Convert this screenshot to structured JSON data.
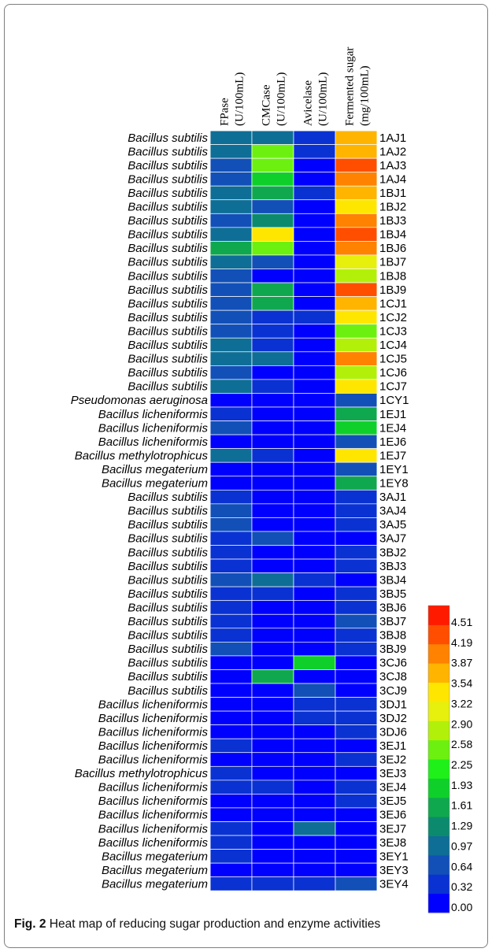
{
  "figure": {
    "label": "Fig. 2",
    "caption": "Heat map of reducing sugar production and enzyme activities"
  },
  "chart_data": {
    "type": "heatmap",
    "columns": [
      [
        "FPase",
        "(U/100mL)"
      ],
      [
        "CMCase",
        "(U/100mL)"
      ],
      [
        "Avicelase",
        "(U/100mL)"
      ],
      [
        "Fermented sugar",
        "(mg/100mL)"
      ]
    ],
    "rows": [
      {
        "species": "Bacillus subtilis",
        "code": "1AJ1",
        "values": [
          1.1,
          1.05,
          0.4,
          3.85
        ]
      },
      {
        "species": "Bacillus subtilis",
        "code": "1AJ2",
        "values": [
          1.1,
          2.55,
          0.35,
          3.9
        ]
      },
      {
        "species": "Bacillus subtilis",
        "code": "1AJ3",
        "values": [
          0.8,
          2.45,
          0.1,
          4.45
        ]
      },
      {
        "species": "Bacillus subtilis",
        "code": "1AJ4",
        "values": [
          0.7,
          2.0,
          0.1,
          4.2
        ]
      },
      {
        "species": "Bacillus subtilis",
        "code": "1BJ1",
        "values": [
          1.05,
          1.6,
          0.35,
          3.85
        ]
      },
      {
        "species": "Bacillus subtilis",
        "code": "1BJ2",
        "values": [
          1.0,
          0.7,
          0.1,
          3.6
        ]
      },
      {
        "species": "Bacillus subtilis",
        "code": "1BJ3",
        "values": [
          0.9,
          1.35,
          0.1,
          3.95
        ]
      },
      {
        "species": "Bacillus subtilis",
        "code": "1BJ4",
        "values": [
          1.05,
          3.55,
          0.05,
          4.5
        ]
      },
      {
        "species": "Bacillus subtilis",
        "code": "1BJ6",
        "values": [
          1.7,
          2.55,
          0.1,
          4.2
        ]
      },
      {
        "species": "Bacillus subtilis",
        "code": "1BJ7",
        "values": [
          0.95,
          0.75,
          0.1,
          3.1
        ]
      },
      {
        "species": "Bacillus subtilis",
        "code": "1BJ8",
        "values": [
          0.7,
          0.15,
          0.1,
          2.8
        ]
      },
      {
        "species": "Bacillus subtilis",
        "code": "1BJ9",
        "values": [
          0.7,
          1.7,
          0.1,
          4.25
        ]
      },
      {
        "species": "Bacillus subtilis",
        "code": "1CJ1",
        "values": [
          0.7,
          1.75,
          0.1,
          3.85
        ]
      },
      {
        "species": "Bacillus subtilis",
        "code": "1CJ2",
        "values": [
          0.7,
          0.6,
          0.4,
          3.6
        ]
      },
      {
        "species": "Bacillus subtilis",
        "code": "1CJ3",
        "values": [
          0.7,
          0.35,
          0.1,
          2.55
        ]
      },
      {
        "species": "Bacillus subtilis",
        "code": "1CJ4",
        "values": [
          1.0,
          0.35,
          0.1,
          2.85
        ]
      },
      {
        "species": "Bacillus subtilis",
        "code": "1CJ5",
        "values": [
          1.0,
          0.95,
          0.1,
          4.1
        ]
      },
      {
        "species": "Bacillus subtilis",
        "code": "1CJ6",
        "values": [
          0.7,
          0.1,
          0.1,
          2.9
        ]
      },
      {
        "species": "Bacillus subtilis",
        "code": "1CJ7",
        "values": [
          1.05,
          0.35,
          0.1,
          3.55
        ]
      },
      {
        "species": "Pseudomonas aeruginosa",
        "code": "1CY1",
        "values": [
          0.3,
          0.1,
          0.1,
          0.75
        ]
      },
      {
        "species": "Bacillus licheniformis",
        "code": "1EJ1",
        "values": [
          0.35,
          0.1,
          0.1,
          1.75
        ]
      },
      {
        "species": "Bacillus licheniformis",
        "code": "1EJ4",
        "values": [
          0.7,
          0.1,
          0.1,
          1.95
        ]
      },
      {
        "species": "Bacillus licheniformis",
        "code": "1EJ6",
        "values": [
          0.15,
          0.1,
          0.3,
          0.75
        ]
      },
      {
        "species": "Bacillus methylotrophicus",
        "code": "1EJ7",
        "values": [
          1.05,
          0.5,
          0.3,
          3.55
        ]
      },
      {
        "species": "Bacillus megaterium",
        "code": "1EY1",
        "values": [
          0.3,
          0.1,
          0.1,
          0.75
        ]
      },
      {
        "species": "Bacillus megaterium",
        "code": "1EY8",
        "values": [
          0.3,
          0.1,
          0.1,
          1.75
        ]
      },
      {
        "species": "Bacillus subtilis",
        "code": "3AJ1",
        "values": [
          0.4,
          0.1,
          0.1,
          0.35
        ]
      },
      {
        "species": "Bacillus subtilis",
        "code": "3AJ4",
        "values": [
          0.7,
          0.1,
          0.1,
          0.35
        ]
      },
      {
        "species": "Bacillus subtilis",
        "code": "3AJ5",
        "values": [
          0.7,
          0.1,
          0.1,
          0.35
        ]
      },
      {
        "species": "Bacillus subtilis",
        "code": "3AJ7",
        "values": [
          0.35,
          0.75,
          0.1,
          0.15
        ]
      },
      {
        "species": "Bacillus subtilis",
        "code": "3BJ2",
        "values": [
          0.35,
          0.1,
          0.1,
          0.35
        ]
      },
      {
        "species": "Bacillus subtilis",
        "code": "3BJ3",
        "values": [
          0.35,
          0.1,
          0.1,
          0.35
        ]
      },
      {
        "species": "Bacillus subtilis",
        "code": "3BJ4",
        "values": [
          0.7,
          1.05,
          0.35,
          0.1
        ]
      },
      {
        "species": "Bacillus subtilis",
        "code": "3BJ5",
        "values": [
          0.35,
          0.4,
          0.1,
          0.35
        ]
      },
      {
        "species": "Bacillus subtilis",
        "code": "3BJ6",
        "values": [
          0.35,
          0.1,
          0.1,
          0.4
        ]
      },
      {
        "species": "Bacillus subtilis",
        "code": "3BJ7",
        "values": [
          0.35,
          0.1,
          0.1,
          0.7
        ]
      },
      {
        "species": "Bacillus subtilis",
        "code": "3BJ8",
        "values": [
          0.35,
          0.1,
          0.1,
          0.4
        ]
      },
      {
        "species": "Bacillus subtilis",
        "code": "3BJ9",
        "values": [
          0.7,
          0.1,
          0.1,
          0.35
        ]
      },
      {
        "species": "Bacillus subtilis",
        "code": "3CJ6",
        "values": [
          0.3,
          0.1,
          1.95,
          0.15
        ]
      },
      {
        "species": "Bacillus subtilis",
        "code": "3CJ8",
        "values": [
          0.3,
          1.7,
          0.3,
          0.15
        ]
      },
      {
        "species": "Bacillus subtilis",
        "code": "3CJ9",
        "values": [
          0.3,
          0.3,
          0.7,
          0.15
        ]
      },
      {
        "species": "Bacillus licheniformis",
        "code": "3DJ1",
        "values": [
          0.1,
          0.1,
          0.35,
          0.35
        ]
      },
      {
        "species": "Bacillus licheniformis",
        "code": "3DJ2",
        "values": [
          0.1,
          0.1,
          0.4,
          0.35
        ]
      },
      {
        "species": "Bacillus licheniformis",
        "code": "3DJ6",
        "values": [
          0.1,
          0.1,
          0.1,
          0.35
        ]
      },
      {
        "species": "Bacillus licheniformis",
        "code": "3EJ1",
        "values": [
          0.4,
          0.1,
          0.1,
          0.1
        ]
      },
      {
        "species": "Bacillus licheniformis",
        "code": "3EJ2",
        "values": [
          0.1,
          0.1,
          0.1,
          0.4
        ]
      },
      {
        "species": "Bacillus methylotrophicus",
        "code": "3EJ3",
        "values": [
          0.35,
          0.1,
          0.1,
          0.1
        ]
      },
      {
        "species": "Bacillus licheniformis",
        "code": "3EJ4",
        "values": [
          0.35,
          0.4,
          0.1,
          0.35
        ]
      },
      {
        "species": "Bacillus licheniformis",
        "code": "3EJ5",
        "values": [
          0.15,
          0.1,
          0.1,
          0.35
        ]
      },
      {
        "species": "Bacillus licheniformis",
        "code": "3EJ6",
        "values": [
          0.1,
          0.1,
          0.1,
          0.1
        ]
      },
      {
        "species": "Bacillus licheniformis",
        "code": "3EJ7",
        "values": [
          0.35,
          0.1,
          0.95,
          0.1
        ]
      },
      {
        "species": "Bacillus licheniformis",
        "code": "3EJ8",
        "values": [
          0.35,
          0.1,
          0.1,
          0.1
        ]
      },
      {
        "species": "Bacillus megaterium",
        "code": "3EY1",
        "values": [
          0.35,
          0.1,
          0.1,
          0.1
        ]
      },
      {
        "species": "Bacillus megaterium",
        "code": "3EY3",
        "values": [
          0.3,
          0.1,
          0.1,
          0.1
        ]
      },
      {
        "species": "Bacillus megaterium",
        "code": "3EY4",
        "values": [
          0.35,
          0.4,
          0.4,
          0.65
        ]
      }
    ],
    "colorbar": {
      "ticks": [
        "4.51",
        "4.19",
        "3.87",
        "3.54",
        "3.22",
        "2.90",
        "2.58",
        "2.25",
        "1.93",
        "1.61",
        "1.29",
        "0.97",
        "0.64",
        "0.32",
        "0.00"
      ],
      "range": [
        0,
        4.83
      ],
      "colors": [
        "#0000ff",
        "#0a32d2",
        "#1250b8",
        "#0e6e96",
        "#0c8a6e",
        "#10a84e",
        "#0fd02a",
        "#1ff01a",
        "#6cf010",
        "#b2f00a",
        "#e6f00c",
        "#ffe600",
        "#ffb400",
        "#ff8200",
        "#ff4e00",
        "#ff1a00"
      ]
    }
  }
}
